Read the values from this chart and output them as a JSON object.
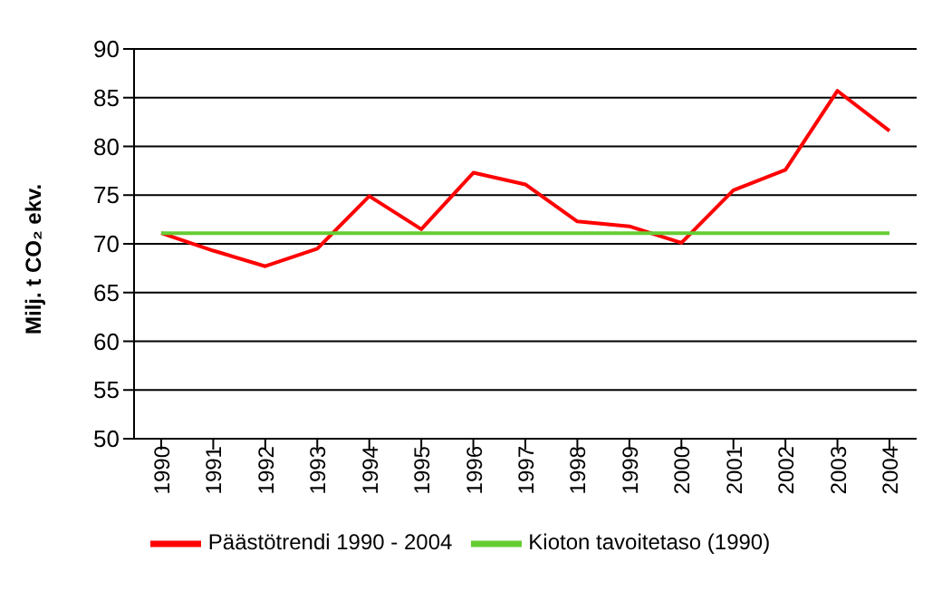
{
  "chart_data": {
    "type": "line",
    "ylabel": "Milj. t CO₂ ekv.",
    "categories": [
      "1990",
      "1991",
      "1992",
      "1993",
      "1994",
      "1995",
      "1996",
      "1997",
      "1998",
      "1999",
      "2000",
      "2001",
      "2002",
      "2003",
      "2004"
    ],
    "series": [
      {
        "name": "Päästötrendi 1990 - 2004",
        "color": "#ff0000",
        "values": [
          71.1,
          69.3,
          67.7,
          69.5,
          74.9,
          71.5,
          77.3,
          76.1,
          72.3,
          71.8,
          70.1,
          75.5,
          77.6,
          85.7,
          81.6
        ]
      },
      {
        "name": "Kioton tavoitetaso (1990)",
        "color": "#66cc33",
        "values": [
          71.1,
          71.1,
          71.1,
          71.1,
          71.1,
          71.1,
          71.1,
          71.1,
          71.1,
          71.1,
          71.1,
          71.1,
          71.1,
          71.1,
          71.1
        ]
      }
    ],
    "ylim": [
      50,
      90
    ],
    "yticks": [
      50,
      55,
      60,
      65,
      70,
      75,
      80,
      85,
      90
    ],
    "grid": "y",
    "legend": "bottom",
    "marker": "none",
    "line_style": "solid"
  }
}
